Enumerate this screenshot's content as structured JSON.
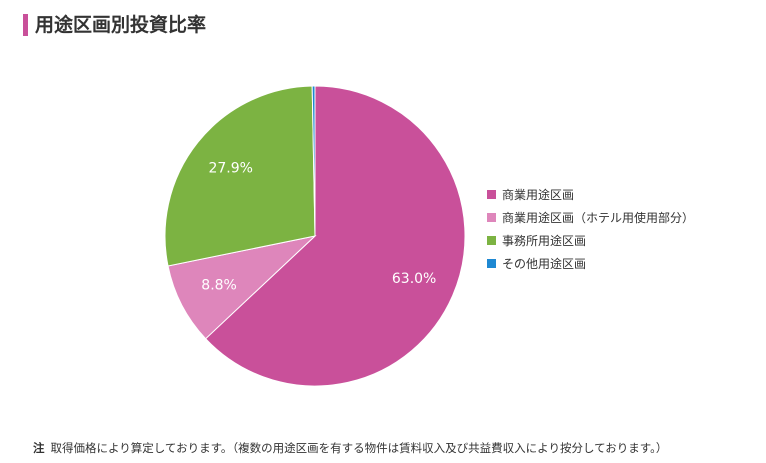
{
  "page": {
    "title": "用途区画別投資比率",
    "accent_color": "#c9509a"
  },
  "chart_data": {
    "type": "pie",
    "title": "用途区画別投資比率",
    "start": "12 o'clock, clockwise",
    "slices": [
      {
        "name": "商業用途区画",
        "value": 63.0,
        "label": "63.0%",
        "color": "#c9509a"
      },
      {
        "name": "商業用途区画（ホテル用使用部分）",
        "value": 8.8,
        "label": "8.8%",
        "color": "#de86bb"
      },
      {
        "name": "事務所用途区画",
        "value": 27.9,
        "label": "27.9%",
        "color": "#7cb342"
      },
      {
        "name": "その他用途区画",
        "value": 0.3,
        "label": "",
        "color": "#1e88d2"
      }
    ],
    "legend_position": "right"
  },
  "legend": {
    "items": [
      {
        "label": "商業用途区画",
        "color": "#c9509a"
      },
      {
        "label": "商業用途区画（ホテル用使用部分）",
        "color": "#de86bb"
      },
      {
        "label": "事務所用途区画",
        "color": "#7cb342"
      },
      {
        "label": "その他用途区画",
        "color": "#1e88d2"
      }
    ]
  },
  "note": {
    "label": "注",
    "text": "取得価格により算定しております。（複数の用途区画を有する物件は賃料収入及び共益費収入により按分しております。）"
  }
}
